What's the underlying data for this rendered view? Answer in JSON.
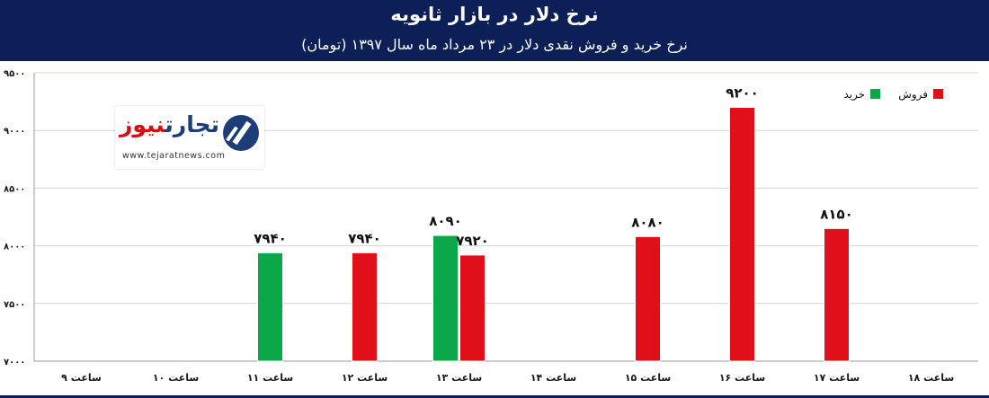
{
  "chart_data": {
    "type": "bar",
    "title": "نرخ دلار در بازار ثانویه",
    "subtitle": "نرخ خرید و فروش نقدی دلار در ۲۳ مرداد ماه سال ۱۳۹۷ (تومان)",
    "categories": [
      "ساعت ۹",
      "ساعت ۱۰",
      "ساعت ۱۱",
      "ساعت ۱۲",
      "ساعت ۱۳",
      "ساعت ۱۴",
      "ساعت ۱۵",
      "ساعت ۱۶",
      "ساعت ۱۷",
      "ساعت ۱۸"
    ],
    "series": [
      {
        "name": "خرید",
        "color": "#0ba84a",
        "values": [
          null,
          null,
          7940,
          null,
          8090,
          null,
          null,
          null,
          null,
          null
        ],
        "labels": [
          null,
          null,
          "۷۹۴۰",
          null,
          "۸۰۹۰",
          null,
          null,
          null,
          null,
          null
        ]
      },
      {
        "name": "فروش",
        "color": "#e0101a",
        "values": [
          null,
          null,
          null,
          7940,
          7920,
          null,
          8080,
          9200,
          8150,
          null
        ],
        "labels": [
          null,
          null,
          null,
          "۷۹۴۰",
          "۷۹۲۰",
          null,
          "۸۰۸۰",
          "۹۲۰۰",
          "۸۱۵۰",
          null
        ]
      }
    ],
    "ylim": [
      7000,
      9500
    ],
    "yticks": [
      7000,
      7500,
      8000,
      8500,
      9000,
      9500
    ],
    "ytick_labels": [
      "۷۰۰۰",
      "۷۵۰۰",
      "۸۰۰۰",
      "۸۵۰۰",
      "۹۰۰۰",
      "۹۵۰۰"
    ],
    "grid": true,
    "legend_position": "top-right"
  },
  "logo": {
    "text_part1": "تجارت",
    "text_part2": "نیوز",
    "url": "www.tejaratnews.com"
  },
  "colors": {
    "background": "#0c1f56",
    "plot_area": "#ffffff",
    "axis_text": "#1a1a1a",
    "buy": "#0ba84a",
    "sell": "#e0101a"
  }
}
